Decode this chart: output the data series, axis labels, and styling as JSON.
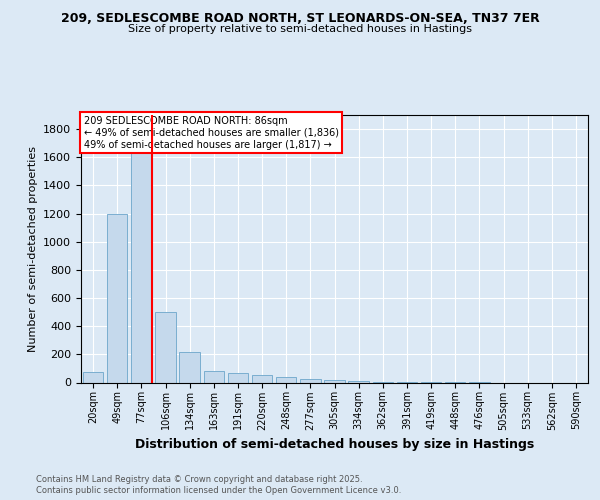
{
  "title_line1": "209, SEDLESCOMBE ROAD NORTH, ST LEONARDS-ON-SEA, TN37 7ER",
  "title_line2": "Size of property relative to semi-detached houses in Hastings",
  "xlabel": "Distribution of semi-detached houses by size in Hastings",
  "ylabel": "Number of semi-detached properties",
  "footer_line1": "Contains HM Land Registry data © Crown copyright and database right 2025.",
  "footer_line2": "Contains public sector information licensed under the Open Government Licence v3.0.",
  "annotation_line1": "209 SEDLESCOMBE ROAD NORTH: 86sqm",
  "annotation_line2": "← 49% of semi-detached houses are smaller (1,836)",
  "annotation_line3": "49% of semi-detached houses are larger (1,817) →",
  "bar_labels": [
    "20sqm",
    "49sqm",
    "77sqm",
    "106sqm",
    "134sqm",
    "163sqm",
    "191sqm",
    "220sqm",
    "248sqm",
    "277sqm",
    "305sqm",
    "334sqm",
    "362sqm",
    "391sqm",
    "419sqm",
    "448sqm",
    "476sqm",
    "505sqm",
    "533sqm",
    "562sqm",
    "590sqm"
  ],
  "bar_values": [
    75,
    1200,
    1650,
    500,
    215,
    80,
    65,
    55,
    40,
    25,
    15,
    10,
    5,
    3,
    2,
    1,
    1,
    0,
    0,
    0,
    0
  ],
  "bar_color": "#c5d9ec",
  "bar_edge_color": "#7aaed0",
  "red_line_x": 2.45,
  "red_line_color": "red",
  "ylim": [
    0,
    1900
  ],
  "yticks": [
    0,
    200,
    400,
    600,
    800,
    1000,
    1200,
    1400,
    1600,
    1800
  ],
  "background_color": "#dce9f5",
  "plot_bg_color": "#dce9f5",
  "grid_color": "#ffffff",
  "title1_fontsize": 9,
  "title2_fontsize": 8,
  "ylabel_fontsize": 8,
  "xlabel_fontsize": 9,
  "tick_fontsize": 7,
  "footer_fontsize": 6,
  "annot_fontsize": 7
}
